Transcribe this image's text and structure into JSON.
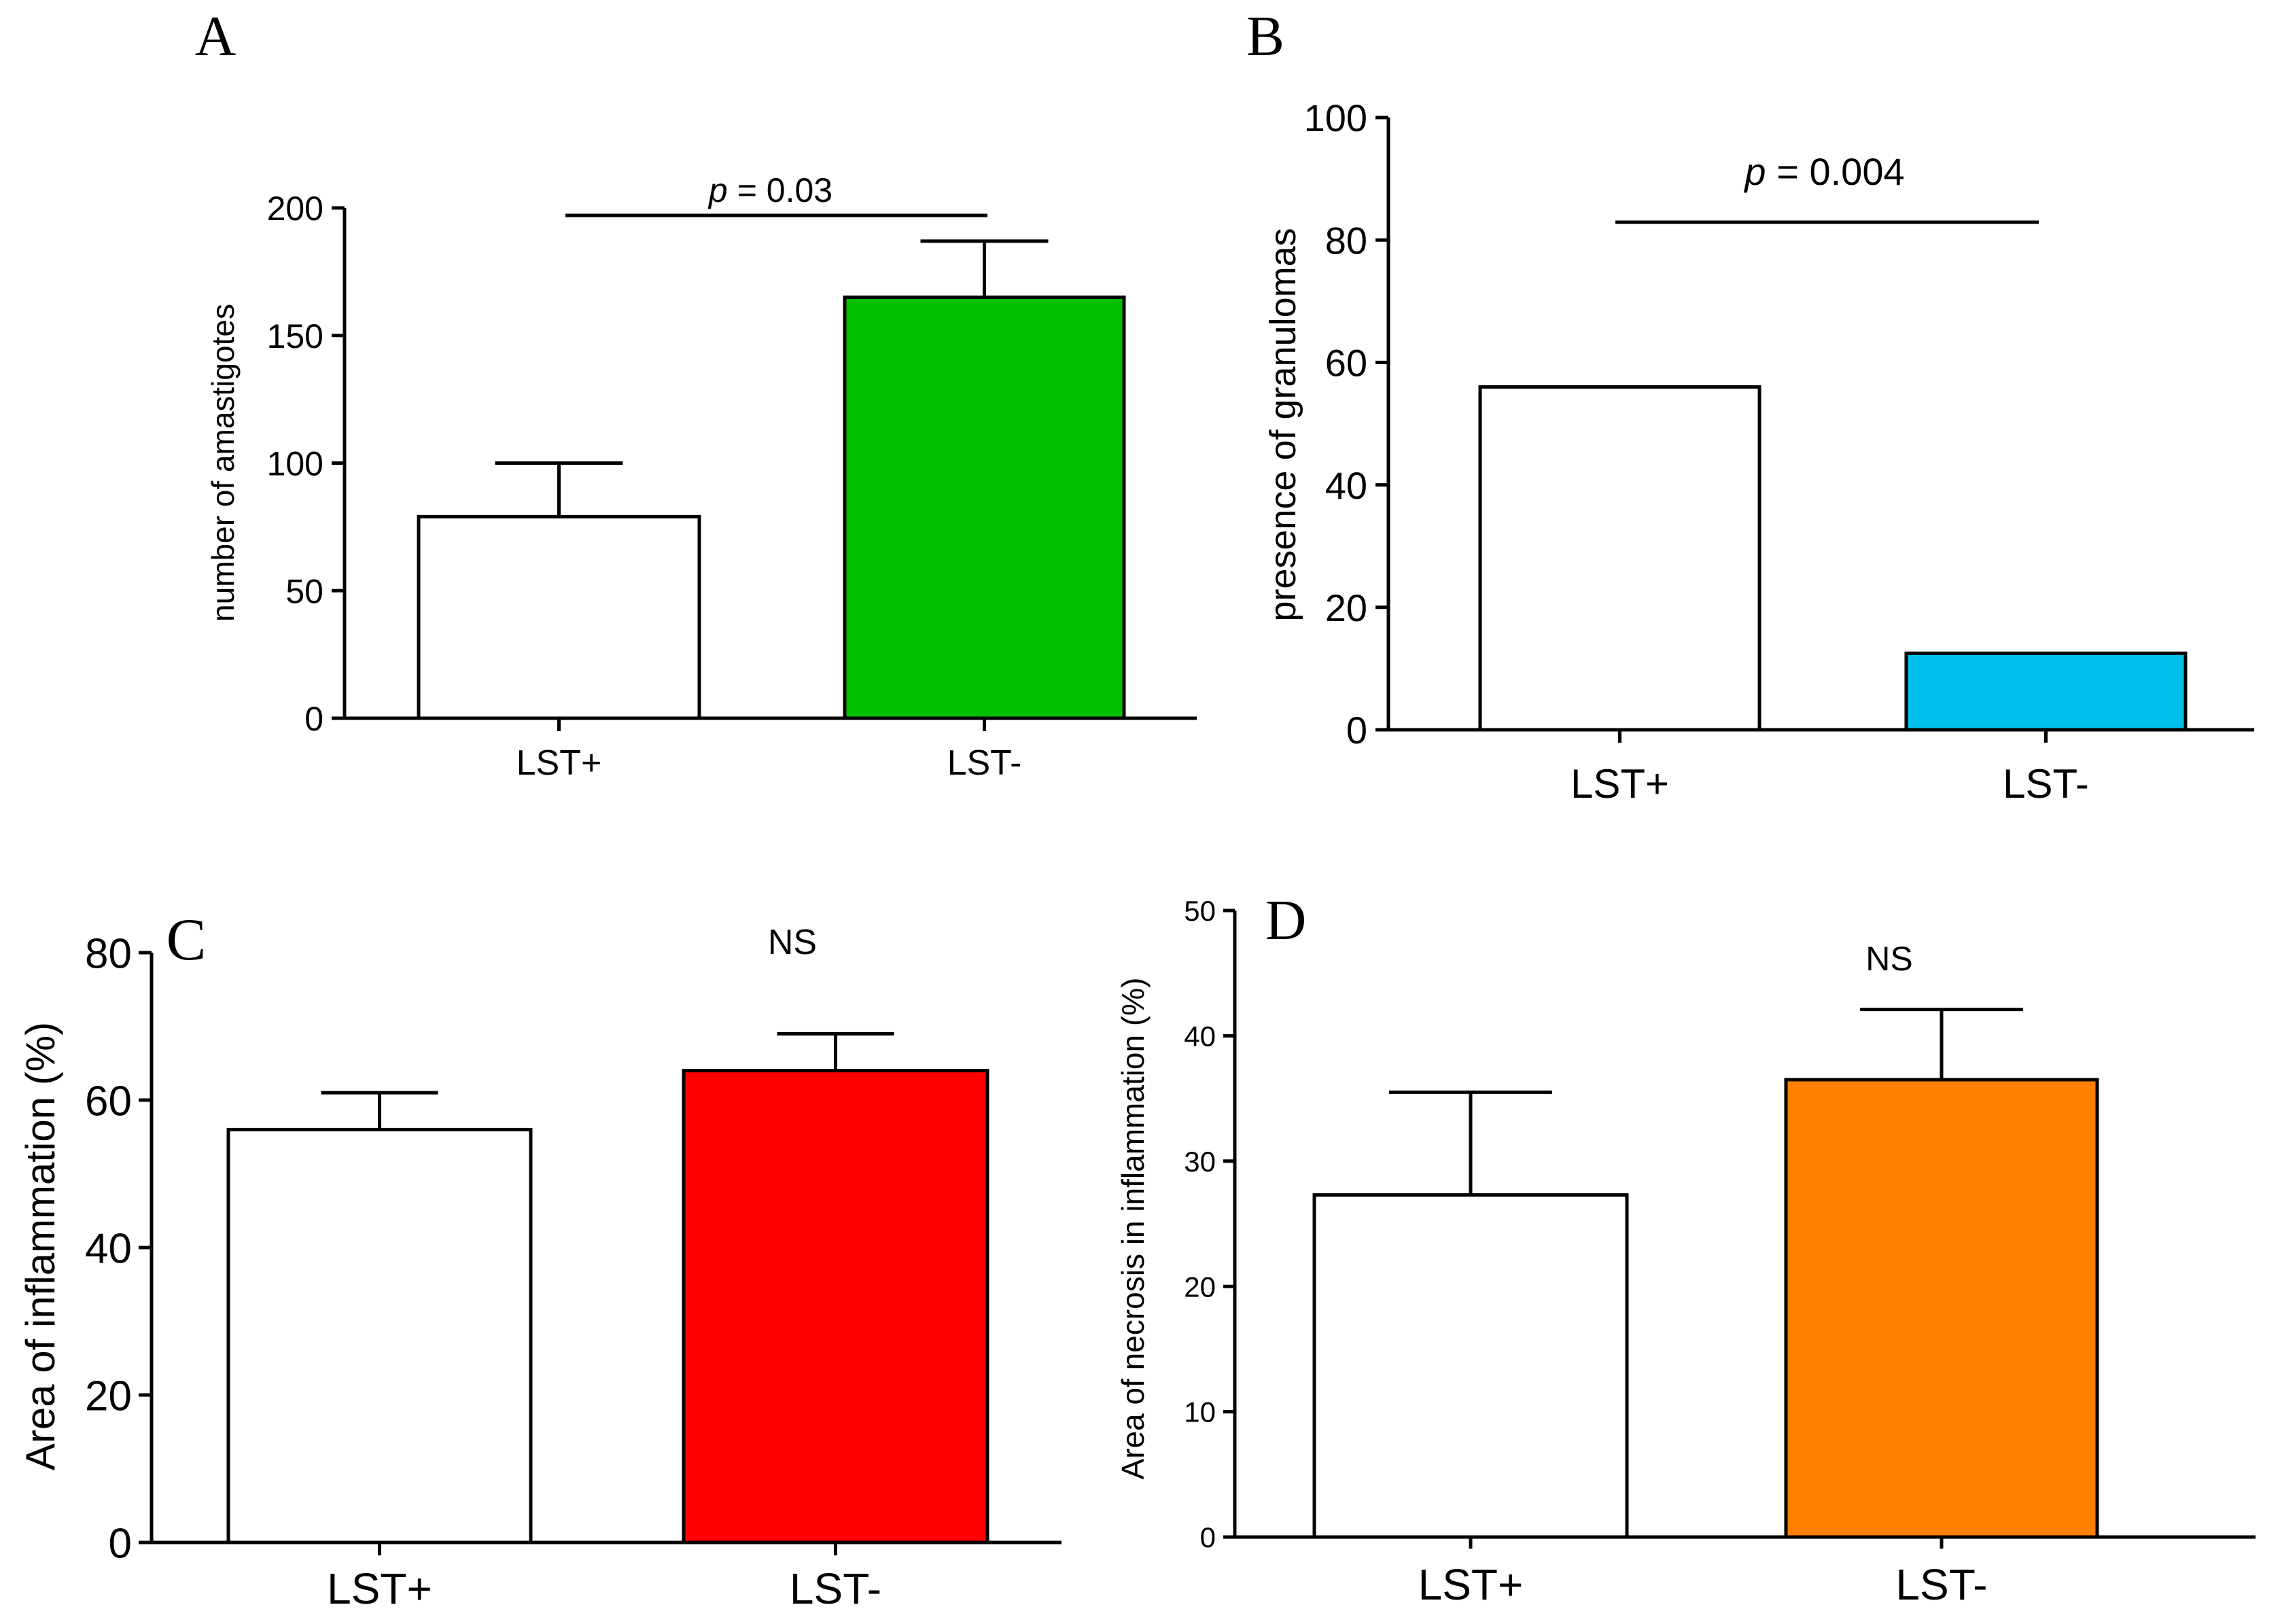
{
  "chart_data": [
    {
      "panel": "A",
      "type": "bar",
      "title": "",
      "xlabel": "",
      "ylabel": "number of amastigotes",
      "categories": [
        "LST+",
        "LST-"
      ],
      "values": [
        79,
        165
      ],
      "error_bars": [
        21,
        22
      ],
      "bar_colors": [
        "#ffffff",
        "#00c000"
      ],
      "ylim": [
        0,
        200
      ],
      "yticks": [
        0,
        50,
        100,
        150,
        200
      ],
      "annotation": {
        "symbol": "p",
        "text": "= 0.03"
      }
    },
    {
      "panel": "B",
      "type": "bar",
      "title": "",
      "xlabel": "",
      "ylabel": "presence of granulomas",
      "categories": [
        "LST+",
        "LST-"
      ],
      "values": [
        56,
        12.5
      ],
      "error_bars": null,
      "bar_colors": [
        "#ffffff",
        "#00c0eb"
      ],
      "ylim": [
        0,
        100
      ],
      "yticks": [
        0,
        20,
        40,
        60,
        80,
        100
      ],
      "annotation": {
        "symbol": "p",
        "text": "= 0.004"
      }
    },
    {
      "panel": "C",
      "type": "bar",
      "title": "",
      "xlabel": "",
      "ylabel": "Area of inflammation (%)",
      "categories": [
        "LST+",
        "LST-"
      ],
      "values": [
        56,
        64
      ],
      "error_bars": [
        5,
        5
      ],
      "bar_colors": [
        "#ffffff",
        "#ff0000"
      ],
      "ylim": [
        0,
        80
      ],
      "yticks": [
        0,
        20,
        40,
        60,
        80
      ],
      "annotation": {
        "text": "NS"
      }
    },
    {
      "panel": "D",
      "type": "bar",
      "title": "",
      "xlabel": "",
      "ylabel": "Area of necrosis in inflammation (%)",
      "categories": [
        "LST+",
        "LST-"
      ],
      "values": [
        27.3,
        36.5
      ],
      "error_bars": [
        8.2,
        5.6
      ],
      "bar_colors": [
        "#ffffff",
        "#ff8000"
      ],
      "ylim": [
        0,
        50
      ],
      "yticks": [
        0,
        10,
        20,
        30,
        40,
        50
      ],
      "annotation": {
        "text": "NS"
      }
    }
  ]
}
